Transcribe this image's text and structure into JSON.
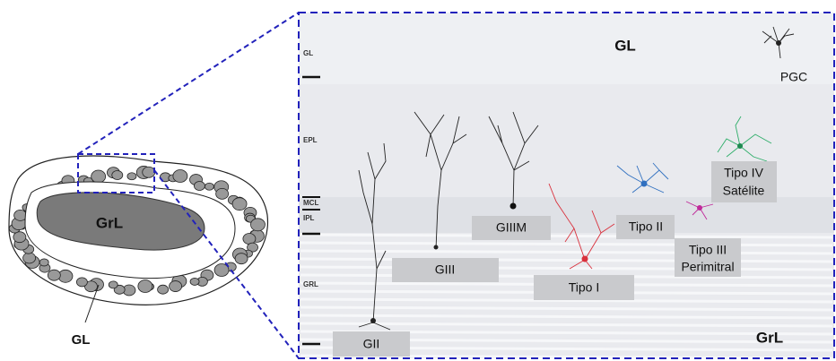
{
  "schematic": {
    "inner_label": "GrL",
    "outer_label": "GL"
  },
  "panel": {
    "layers": [
      "GL",
      "EPL",
      "MCL",
      "IPL",
      "GRL"
    ],
    "region_labels": [
      "GL",
      "GrL"
    ],
    "cells": [
      {
        "label": "PGC"
      },
      {
        "label": "GII"
      },
      {
        "label": "GIII"
      },
      {
        "label": "GIIIM"
      },
      {
        "label": "Tipo I"
      },
      {
        "label": "Tipo II"
      },
      {
        "label": [
          "Tipo III",
          "Perimitral"
        ]
      },
      {
        "label": [
          "Tipo IV",
          "Satélite"
        ]
      }
    ]
  }
}
